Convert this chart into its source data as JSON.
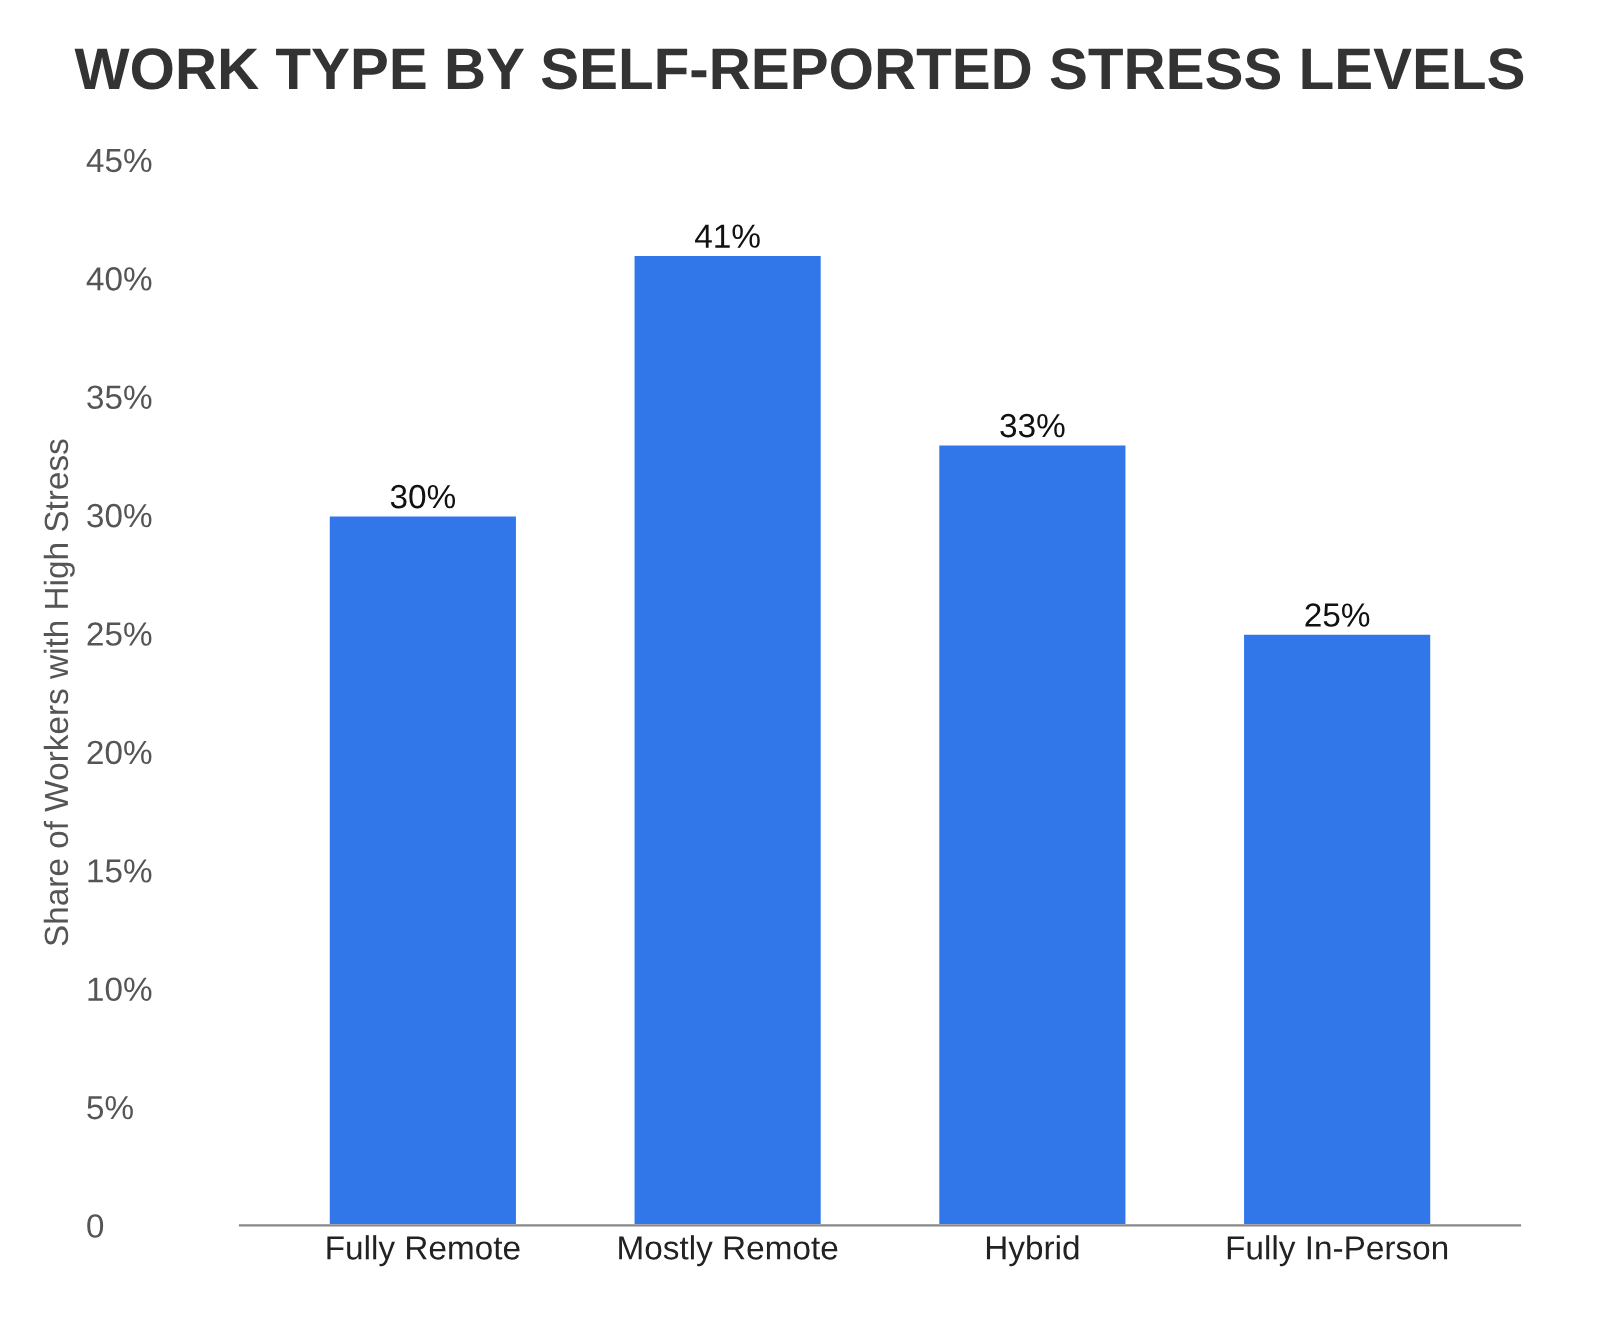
{
  "chart_data": {
    "type": "bar",
    "title": "WORK TYPE BY SELF-REPORTED STRESS LEVELS",
    "ylabel": "Share of Workers with High Stress",
    "categories": [
      "Fully Remote",
      "Mostly Remote",
      "Hybrid",
      "Fully In-Person"
    ],
    "values": [
      30,
      41,
      33,
      25
    ],
    "color": "#3177ea",
    "value_labels": [
      "30%",
      "41%",
      "33%",
      "25%"
    ],
    "ylim": [
      0,
      45
    ],
    "yticks": [
      0,
      {
        "value": 5,
        "label": "5%"
      },
      {
        "value": 10,
        "label": "10%"
      },
      {
        "value": 15,
        "label": "15%"
      },
      {
        "value": 20,
        "label": "20%"
      },
      {
        "value": 25,
        "label": "25%"
      },
      {
        "value": 30,
        "label": "30%"
      },
      {
        "value": 35,
        "label": "35%"
      },
      {
        "value": 40,
        "label": "40%"
      },
      {
        "value": 45,
        "label": "45%"
      }
    ],
    "grid": false,
    "legend": false
  }
}
